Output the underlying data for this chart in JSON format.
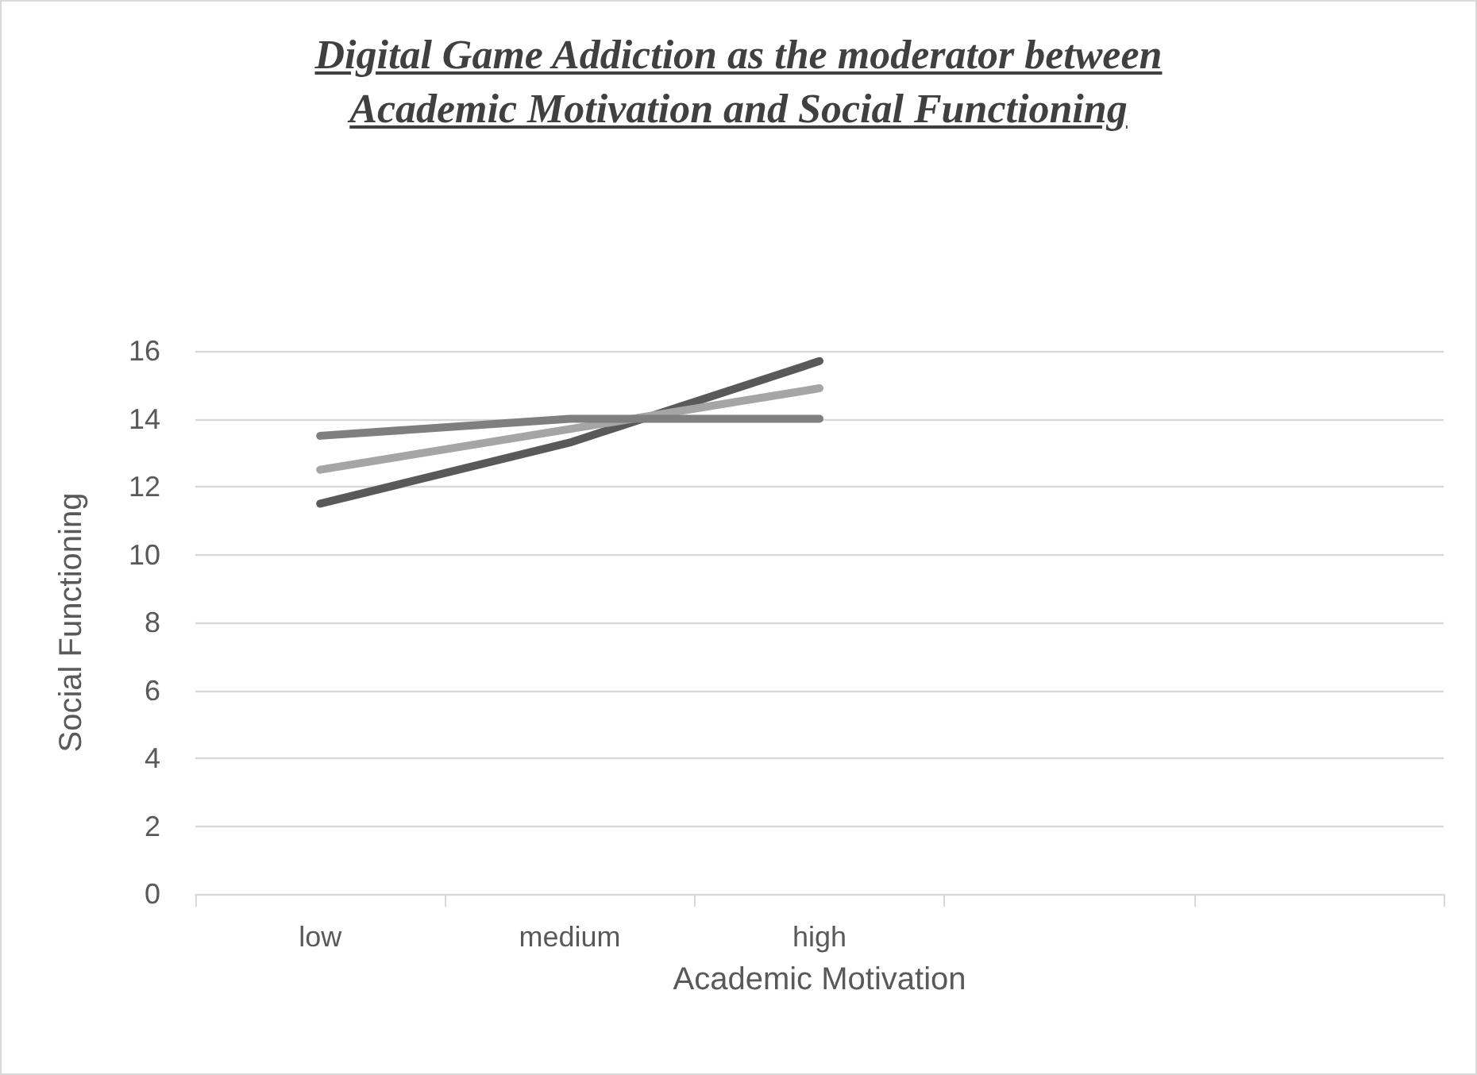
{
  "chart_data": {
    "type": "line",
    "title": "Digital Game Addiction as the moderator between\nAcademic Motivation and Social Functioning",
    "xlabel": "Academic Motivation",
    "ylabel": "Social Functioning",
    "categories": [
      "low",
      "medium",
      "high",
      null,
      null
    ],
    "series": [
      {
        "color": "#595959",
        "values": [
          11.5,
          13.3,
          15.7,
          null,
          null
        ]
      },
      {
        "color": "#a5a5a5",
        "values": [
          12.5,
          13.7,
          14.9,
          null,
          null
        ]
      },
      {
        "color": "#7f7f7f",
        "values": [
          13.5,
          14,
          14,
          null,
          null
        ]
      }
    ],
    "ylim": [
      0,
      16
    ],
    "yticks": [
      0,
      2,
      4,
      6,
      8,
      10,
      12,
      14,
      16
    ],
    "grid": "y",
    "marker": "none",
    "line_style": "solid"
  }
}
